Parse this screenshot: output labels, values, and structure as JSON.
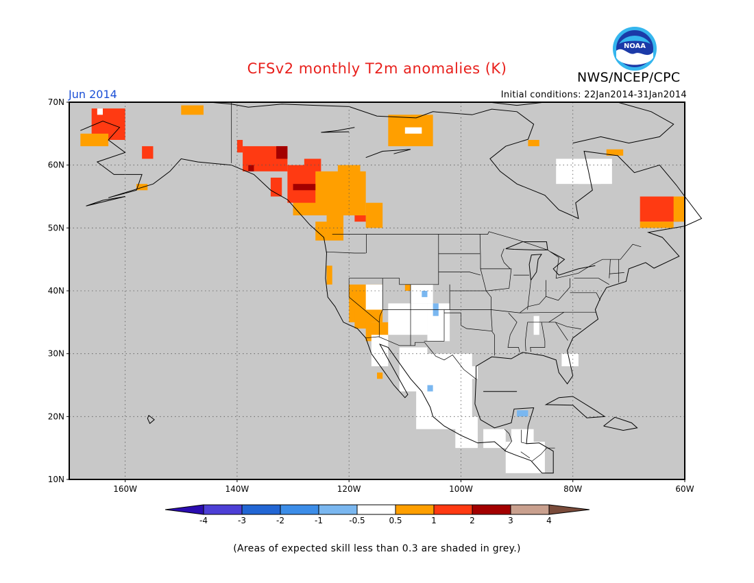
{
  "header": {
    "title": "CFSv2 monthly T2m anomalies (K)",
    "agency": "NWS/NCEP/CPC",
    "logo_text": "NOAA",
    "month_label": "Jun 2014",
    "initial_conditions": "Initial conditions: 22Jan2014-31Jan2014"
  },
  "map": {
    "projection": "lat-lon",
    "lon_range": [
      -170,
      -60
    ],
    "lat_range": [
      10,
      70
    ],
    "background_color": "#c8c8c8",
    "x_ticks": [
      "160W",
      "140W",
      "120W",
      "100W",
      "80W",
      "60W"
    ],
    "y_ticks": [
      "70N",
      "60N",
      "50N",
      "40N",
      "30N",
      "20N",
      "10N"
    ],
    "grid": "dotted"
  },
  "legend": {
    "labels": [
      "-4",
      "-3",
      "-2",
      "-1",
      "-0.5",
      "0.5",
      "1",
      "2",
      "3",
      "4"
    ],
    "colors": [
      "#2a0cb0",
      "#4d3fd6",
      "#2266d4",
      "#3c8de8",
      "#7ab7f0",
      "#ffffff",
      "#ff9f00",
      "#ff3a12",
      "#a30000",
      "#c9a08e",
      "#7a4b3a"
    ]
  },
  "footnote": "(Areas of expected skill less than 0.3 are shaded in grey.)"
}
